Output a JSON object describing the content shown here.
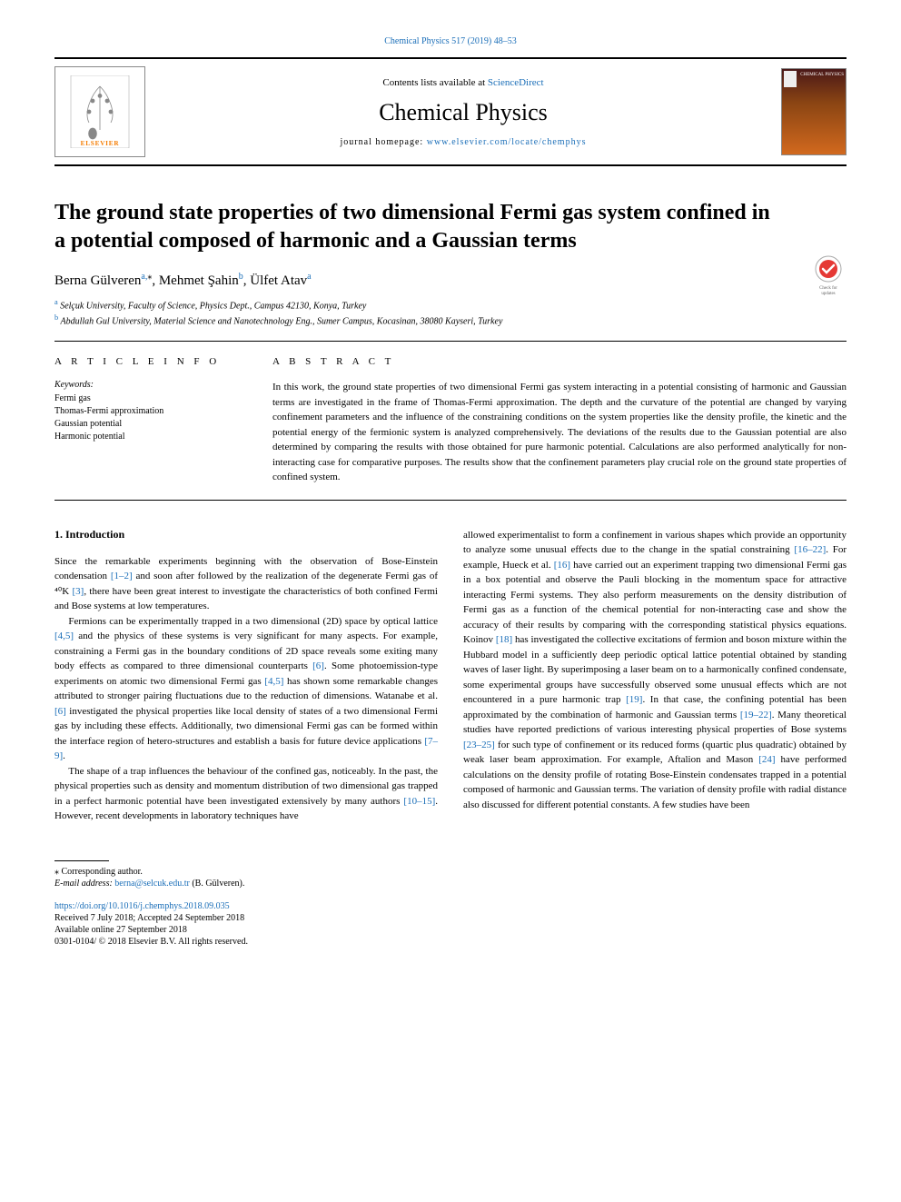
{
  "top_citation": {
    "text": "Chemical Physics 517 (2019) 48–53",
    "color": "#1a6eb8"
  },
  "header": {
    "publisher_name": "ELSEVIER",
    "publisher_color": "#F57C00",
    "contents_prefix": "Contents lists available at ",
    "contents_link": "ScienceDirect",
    "journal_title": "Chemical Physics",
    "homepage_prefix": "journal homepage: ",
    "homepage_url": "www.elsevier.com/locate/chemphys",
    "cover_gradient": [
      "#4a1818",
      "#8B4513",
      "#D2691E"
    ]
  },
  "article": {
    "title": "The ground state properties of two dimensional Fermi gas system confined in a potential composed of harmonic and a Gaussian terms",
    "check_badge_label": "Check for updates",
    "authors_html": "Berna Gülveren",
    "author1_name": "Berna Gülveren",
    "author1_affil": "a,",
    "author1_corr": "⁎",
    "author2_name": ", Mehmet Şahin",
    "author2_affil": "b",
    "author3_name": ", Ülfet Atav",
    "author3_affil": "a",
    "affiliations": [
      {
        "sup": "a",
        "text": " Selçuk University, Faculty of Science, Physics Dept., Campus 42130, Konya, Turkey"
      },
      {
        "sup": "b",
        "text": " Abdullah Gul University, Material Science and Nanotechnology Eng., Sumer Campus, Kocasinan, 38080 Kayseri, Turkey"
      }
    ]
  },
  "article_info": {
    "heading": "A R T I C L E  I N F O",
    "kw_label": "Keywords:",
    "keywords": [
      "Fermi gas",
      "Thomas-Fermi approximation",
      "Gaussian potential",
      "Harmonic potential"
    ]
  },
  "abstract": {
    "heading": "A B S T R A C T",
    "text": "In this work, the ground state properties of two dimensional Fermi gas system interacting in a potential consisting of harmonic and Gaussian terms are investigated in the frame of Thomas-Fermi approximation. The depth and the curvature of the potential are changed by varying confinement parameters and the influence of the constraining conditions on the system properties like the density profile, the kinetic and the potential energy of the fermionic system is analyzed comprehensively. The deviations of the results due to the Gaussian potential are also determined by comparing the results with those obtained for pure harmonic potential. Calculations are also performed analytically for non-interacting case for comparative purposes. The results show that the confinement parameters play crucial role on the ground state properties of confined system."
  },
  "body": {
    "intro_heading": "1. Introduction",
    "left_paras": [
      "Since the remarkable experiments beginning with the observation of Bose-Einstein condensation [1–2] and soon after followed by the realization of the degenerate Fermi gas of ⁴⁰K [3], there have been great interest to investigate the characteristics of both confined Fermi and Bose systems at low temperatures.",
      "Fermions can be experimentally trapped in a two dimensional (2D) space by optical lattice [4,5] and the physics of these systems is very significant for many aspects. For example, constraining a Fermi gas in the boundary conditions of 2D space reveals some exiting many body effects as compared to three dimensional counterparts [6]. Some photoemission-type experiments on atomic two dimensional Fermi gas [4,5] has shown some remarkable changes attributed to stronger pairing fluctuations due to the reduction of dimensions. Watanabe et al. [6] investigated the physical properties like local density of states of a two dimensional Fermi gas by including these effects. Additionally, two dimensional Fermi gas can be formed within the interface region of hetero-structures and establish a basis for future device applications [7–9].",
      "The shape of a trap influences the behaviour of the confined gas, noticeably. In the past, the physical properties such as density and momentum distribution of two dimensional gas trapped in a perfect harmonic potential have been investigated extensively by many authors [10–15]. However, recent developments in laboratory techniques have"
    ],
    "right_paras": [
      "allowed experimentalist to form a confinement in various shapes which provide an opportunity to analyze some unusual effects due to the change in the spatial constraining [16–22]. For example, Hueck et al. [16] have carried out an experiment trapping two dimensional Fermi gas in a box potential and observe the Pauli blocking in the momentum space for attractive interacting Fermi systems. They also perform measurements on the density distribution of Fermi gas as a function of the chemical potential for non-interacting case and show the accuracy of their results by comparing with the corresponding statistical physics equations. Koinov [18] has investigated the collective excitations of fermion and boson mixture within the Hubbard model in a sufficiently deep periodic optical lattice potential obtained by standing waves of laser light. By superimposing a laser beam on to a harmonically confined condensate, some experimental groups have successfully observed some unusual effects which are not encountered in a pure harmonic trap [19]. In that case, the confining potential has been approximated by the combination of harmonic and Gaussian terms [19–22]. Many theoretical studies have reported predictions of various interesting physical properties of Bose systems [23–25] for such type of confinement or its reduced forms (quartic plus quadratic) obtained by weak laser beam approximation. For example, Aftalion and Mason [24] have performed calculations on the density profile of rotating Bose-Einstein condensates trapped in a potential composed of harmonic and Gaussian terms. The variation of density profile with radial distance also discussed for different potential constants. A few studies have been"
    ],
    "cites": [
      "[1–2]",
      "[3]",
      "[4,5]",
      "[6]",
      "[4,5]",
      "[6]",
      "[7–9]",
      "[10–15]",
      "[16–22]",
      "[16]",
      "[18]",
      "[19]",
      "[19–22]",
      "[23–25]",
      "[24]"
    ],
    "cite_color": "#1a6eb8"
  },
  "footer": {
    "corr_marker": "⁎",
    "corr_text": " Corresponding author.",
    "email_label": "E-mail address: ",
    "email": "berna@selcuk.edu.tr",
    "email_suffix": " (B. Gülveren).",
    "doi": "https://doi.org/10.1016/j.chemphys.2018.09.035",
    "received": "Received 7 July 2018; Accepted 24 September 2018",
    "available": "Available online 27 September 2018",
    "copyright": "0301-0104/ © 2018 Elsevier B.V. All rights reserved."
  },
  "colors": {
    "link": "#1a6eb8",
    "publisher": "#F57C00",
    "text": "#000000",
    "background": "#ffffff"
  },
  "fonts": {
    "body": "Georgia, 'Times New Roman', serif",
    "title_size_pt": 24,
    "journal_size_pt": 26,
    "authors_size_pt": 15,
    "body_size_pt": 11,
    "small_size_pt": 10
  }
}
